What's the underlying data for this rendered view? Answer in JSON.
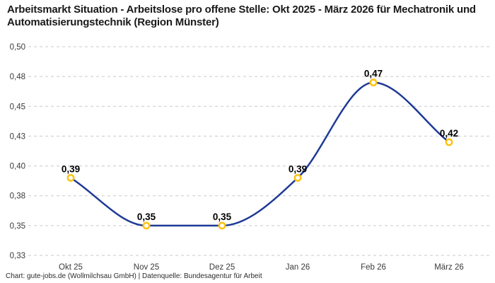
{
  "chart_data": {
    "type": "line",
    "title": "Arbeitsmarkt Situation - Arbeitslose pro offene Stelle: Okt 2025 - März 2026 für Mechatronik und Automatisierungstechnik (Region Münster)",
    "categories": [
      "Okt 25",
      "Nov 25",
      "Dez 25",
      "Jan 26",
      "Feb 26",
      "März 26"
    ],
    "series": [
      {
        "name": "Arbeitslose pro offene Stelle",
        "values": [
          0.39,
          0.35,
          0.35,
          0.39,
          0.47,
          0.42
        ]
      }
    ],
    "point_labels": [
      "0,39",
      "0,35",
      "0,35",
      "0,39",
      "0,47",
      "0,42"
    ],
    "y_ticks": [
      {
        "value": 0.5,
        "label": "0,50"
      },
      {
        "value": 0.475,
        "label": "0,48"
      },
      {
        "value": 0.45,
        "label": "0,45"
      },
      {
        "value": 0.425,
        "label": "0,43"
      },
      {
        "value": 0.4,
        "label": "0,40"
      },
      {
        "value": 0.375,
        "label": "0,38"
      },
      {
        "value": 0.35,
        "label": "0,35"
      },
      {
        "value": 0.325,
        "label": "0,33"
      }
    ],
    "ylim": [
      0.325,
      0.5
    ],
    "grid": true,
    "grid_style": "dashed",
    "legend": false,
    "xlabel": "",
    "ylabel": "",
    "colors": {
      "line": "#1e3a96",
      "marker_ring": "#ffc20e",
      "marker_fill": "#ffffff",
      "grid": "#c9c9c9",
      "point_label": "#000000",
      "tick_label": "#3a3a3a",
      "title": "#1a1a1a"
    }
  },
  "footer": {
    "credit": "Chart: gute-jobs.de (Wollmilchsau GmbH) | Datenquelle: Bundesagentur für Arbeit"
  }
}
